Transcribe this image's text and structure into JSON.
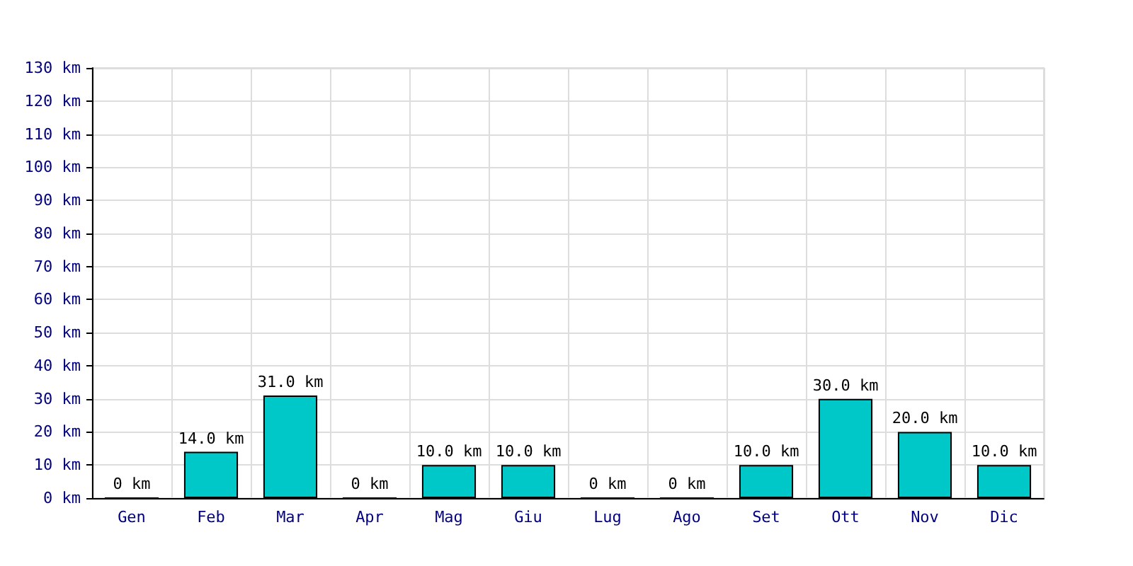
{
  "chart_data": {
    "type": "bar",
    "categories": [
      "Gen",
      "Feb",
      "Mar",
      "Apr",
      "Mag",
      "Giu",
      "Lug",
      "Ago",
      "Set",
      "Ott",
      "Nov",
      "Dic"
    ],
    "values": [
      0,
      14,
      31,
      0,
      10,
      10,
      0,
      0,
      10,
      30,
      20,
      10
    ],
    "value_labels": [
      "0 km",
      "14.0 km",
      "31.0 km",
      "0 km",
      "10.0 km",
      "10.0 km",
      "0 km",
      "0 km",
      "10.0 km",
      "30.0 km",
      "20.0 km",
      "10.0 km"
    ],
    "color": "#00c8c8",
    "ylim": [
      0,
      130
    ],
    "yticks": [
      {
        "value": 0,
        "label": "0 km"
      },
      {
        "value": 10,
        "label": "10 km"
      },
      {
        "value": 20,
        "label": "20 km"
      },
      {
        "value": 30,
        "label": "30 km"
      },
      {
        "value": 40,
        "label": "40 km"
      },
      {
        "value": 50,
        "label": "50 km"
      },
      {
        "value": 60,
        "label": "60 km"
      },
      {
        "value": 70,
        "label": "70 km"
      },
      {
        "value": 80,
        "label": "80 km"
      },
      {
        "value": 90,
        "label": "90 km"
      },
      {
        "value": 100,
        "label": "100 km"
      },
      {
        "value": 110,
        "label": "110 km"
      },
      {
        "value": 120,
        "label": "120 km"
      },
      {
        "value": 130,
        "label": "130 km"
      }
    ],
    "grid": true
  }
}
